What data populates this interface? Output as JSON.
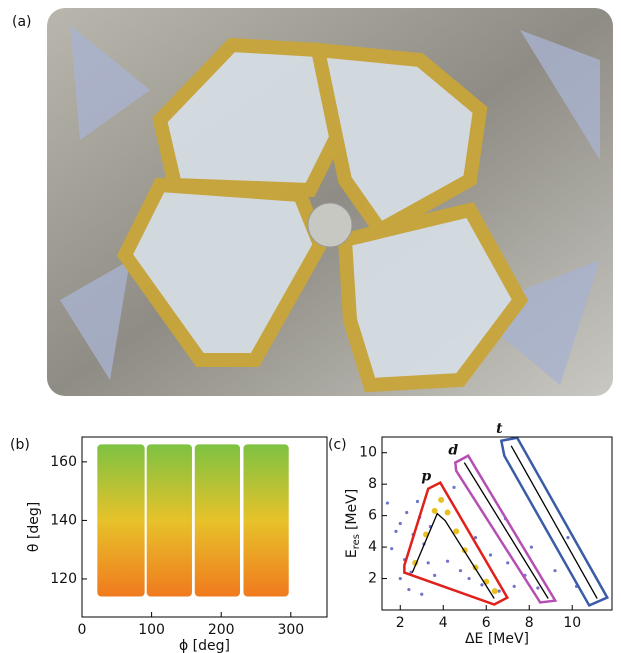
{
  "photo": {
    "label": "(a)"
  },
  "chart_data": [
    {
      "type": "density",
      "label": "(b)",
      "xlabel": "ϕ  [deg]",
      "ylabel": "θ  [deg]",
      "xlim": [
        0,
        352
      ],
      "ylim": [
        107,
        168.5
      ],
      "xticks": [
        0,
        100,
        200,
        300
      ],
      "yticks": [
        120,
        140,
        160
      ],
      "color_low": "#f07a1e",
      "color_high": "#7dc242",
      "bands": [
        {
          "phi": [
            22,
            90
          ],
          "theta": [
            114,
            166
          ]
        },
        {
          "phi": [
            93,
            158
          ],
          "theta": [
            114,
            166
          ]
        },
        {
          "phi": [
            162,
            227
          ],
          "theta": [
            114,
            166
          ]
        },
        {
          "phi": [
            232,
            297
          ],
          "theta": [
            114,
            166
          ]
        }
      ]
    },
    {
      "type": "scatter",
      "label": "(c)",
      "xlabel": "ΔE  [MeV]",
      "ylabel": {
        "main": "E",
        "sub": "res",
        "unit": "[MeV]"
      },
      "xlim": [
        1.15,
        11.85
      ],
      "ylim": [
        0,
        11
      ],
      "xticks": [
        2,
        4,
        6,
        8,
        10
      ],
      "yticks": [
        2,
        4,
        6,
        8,
        10
      ],
      "points": [
        {
          "color": "#6f74c9",
          "x": [
            2.0,
            2.3,
            2.6,
            1.6,
            2.2,
            2.9,
            3.1,
            1.8,
            2.5,
            3.3,
            2.0,
            3.6,
            1.4,
            2.8,
            3.4,
            4.2,
            4.8,
            5.2,
            5.8,
            6.6,
            7.3,
            5.5,
            6.2,
            7.0,
            7.8,
            8.4,
            6.9,
            8.1,
            9.2,
            10.2,
            4.5,
            9.8,
            2.4,
            3.0
          ],
          "y": [
            5.5,
            6.2,
            4.8,
            3.9,
            3.2,
            5.9,
            4.2,
            5.0,
            2.4,
            3.0,
            2.0,
            2.2,
            6.8,
            6.9,
            5.3,
            3.1,
            2.5,
            2.0,
            1.6,
            1.2,
            1.5,
            4.6,
            3.5,
            3.0,
            2.2,
            1.4,
            5.8,
            4.0,
            2.5,
            1.5,
            7.8,
            4.6,
            1.3,
            1.0
          ]
        },
        {
          "color": "#e8c021",
          "x": [
            2.7,
            3.2,
            3.6,
            3.9,
            4.2,
            4.6,
            5.0,
            5.5,
            6.0,
            6.4
          ],
          "y": [
            3.0,
            4.8,
            6.3,
            7.0,
            6.2,
            5.0,
            3.8,
            2.7,
            1.8,
            1.2
          ]
        }
      ],
      "gates": [
        {
          "name": "p",
          "color": "#e0201b",
          "x": [
            3.3,
            3.86,
            6.98,
            6.37,
            2.19,
            2.19
          ],
          "y": [
            7.71,
            8.1,
            0.79,
            0.35,
            2.38,
            2.83
          ]
        },
        {
          "name": "d",
          "color": "#b64fb3",
          "x": [
            4.56,
            5.16,
            9.21,
            8.51,
            4.6
          ],
          "y": [
            9.37,
            9.81,
            0.6,
            0.48,
            8.86
          ]
        },
        {
          "name": "t",
          "color": "#3a5ba8",
          "x": [
            6.7,
            7.44,
            11.63,
            10.79,
            6.84
          ],
          "y": [
            10.76,
            10.95,
            0.79,
            0.29,
            9.81
          ]
        }
      ],
      "lines": [
        {
          "color": "#000000",
          "x": [
            2.56,
            3.72,
            4.09,
            6.37
          ],
          "y": [
            2.38,
            6.13,
            5.68,
            0.73
          ]
        },
        {
          "color": "#000000",
          "x": [
            4.98,
            8.88
          ],
          "y": [
            9.37,
            0.73
          ]
        },
        {
          "color": "#000000",
          "x": [
            7.16,
            11.16
          ],
          "y": [
            10.44,
            0.73
          ]
        }
      ]
    }
  ]
}
